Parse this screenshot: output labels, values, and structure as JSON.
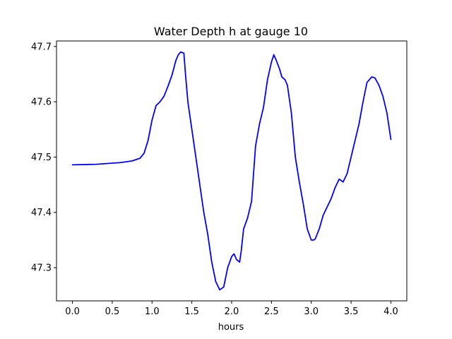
{
  "chart_data": {
    "type": "line",
    "title": "Water Depth h at gauge 10",
    "xlabel": "hours",
    "ylabel": "",
    "xlim": [
      -0.2,
      4.2
    ],
    "ylim": [
      47.24,
      47.71
    ],
    "xticks": [
      0.0,
      0.5,
      1.0,
      1.5,
      2.0,
      2.5,
      3.0,
      3.5,
      4.0
    ],
    "xtick_labels": [
      "0.0",
      "0.5",
      "1.0",
      "1.5",
      "2.0",
      "2.5",
      "3.0",
      "3.5",
      "4.0"
    ],
    "yticks": [
      47.3,
      47.4,
      47.5,
      47.6,
      47.7
    ],
    "ytick_labels": [
      "47.3",
      "47.4",
      "47.5",
      "47.6",
      "47.7"
    ],
    "grid": false,
    "colors": {
      "line": "#0000ff",
      "axes": "#000000",
      "background": "#ffffff"
    },
    "series": [
      {
        "x": [
          0.0,
          0.3,
          0.6,
          0.75,
          0.85,
          0.9,
          0.95,
          1.0,
          1.05,
          1.1,
          1.15,
          1.2,
          1.25,
          1.3,
          1.33,
          1.36,
          1.4,
          1.42,
          1.45,
          1.5,
          1.55,
          1.6,
          1.65,
          1.7,
          1.75,
          1.8,
          1.85,
          1.9,
          1.95,
          2.0,
          2.03,
          2.06,
          2.1,
          2.12,
          2.15,
          2.2,
          2.25,
          2.3,
          2.35,
          2.4,
          2.45,
          2.5,
          2.53,
          2.56,
          2.6,
          2.63,
          2.67,
          2.7,
          2.75,
          2.8,
          2.85,
          2.9,
          2.95,
          3.0,
          3.03,
          3.05,
          3.1,
          3.15,
          3.2,
          3.25,
          3.3,
          3.35,
          3.4,
          3.45,
          3.5,
          3.55,
          3.6,
          3.65,
          3.7,
          3.73,
          3.76,
          3.8,
          3.85,
          3.9,
          3.95,
          4.0
        ],
        "y": [
          47.486,
          47.487,
          47.49,
          47.493,
          47.498,
          47.507,
          47.53,
          47.567,
          47.593,
          47.6,
          47.61,
          47.628,
          47.648,
          47.675,
          47.685,
          47.69,
          47.688,
          47.65,
          47.6,
          47.55,
          47.5,
          47.45,
          47.4,
          47.36,
          47.31,
          47.275,
          47.26,
          47.265,
          47.3,
          47.32,
          47.325,
          47.315,
          47.31,
          47.33,
          47.37,
          47.39,
          47.42,
          47.52,
          47.56,
          47.59,
          47.64,
          47.672,
          47.685,
          47.675,
          47.66,
          47.645,
          47.64,
          47.63,
          47.58,
          47.5,
          47.455,
          47.415,
          47.37,
          47.35,
          47.35,
          47.352,
          47.37,
          47.395,
          47.41,
          47.425,
          47.445,
          47.46,
          47.455,
          47.47,
          47.5,
          47.53,
          47.56,
          47.6,
          47.635,
          47.64,
          47.645,
          47.643,
          47.63,
          47.61,
          47.58,
          47.532
        ]
      }
    ]
  }
}
